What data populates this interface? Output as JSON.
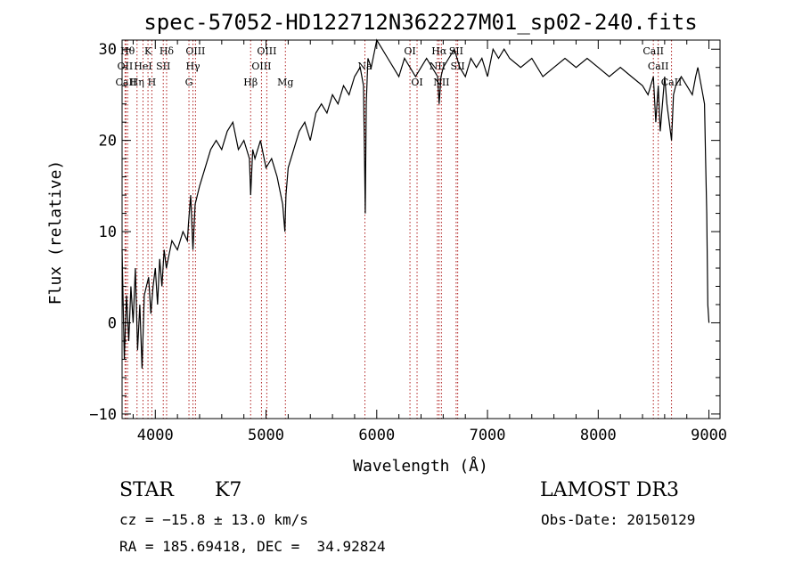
{
  "chart_data": {
    "type": "line",
    "title": "spec-57052-HD122712N362227M01_sp02-240.fits",
    "xlabel": "Wavelength (Å)",
    "ylabel": "Flux (relative)",
    "xlim": [
      3700,
      9100
    ],
    "ylim": [
      -10.5,
      31
    ],
    "xticks": [
      4000,
      5000,
      6000,
      7000,
      8000,
      9000
    ],
    "yticks": [
      -10,
      0,
      10,
      20,
      30
    ],
    "x_minor_step": 200,
    "y_minor_step": 2,
    "series": [
      {
        "name": "flux",
        "x": [
          3700,
          3720,
          3740,
          3760,
          3780,
          3800,
          3820,
          3840,
          3860,
          3880,
          3900,
          3920,
          3940,
          3960,
          3980,
          4000,
          4020,
          4040,
          4060,
          4080,
          4100,
          4150,
          4200,
          4250,
          4290,
          4300,
          4320,
          4340,
          4360,
          4400,
          4450,
          4500,
          4550,
          4600,
          4650,
          4700,
          4750,
          4800,
          4850,
          4861,
          4880,
          4900,
          4950,
          5000,
          5050,
          5100,
          5150,
          5170,
          5180,
          5200,
          5250,
          5300,
          5350,
          5400,
          5450,
          5500,
          5550,
          5600,
          5650,
          5700,
          5750,
          5800,
          5850,
          5880,
          5890,
          5896,
          5905,
          5920,
          5950,
          6000,
          6050,
          6100,
          6150,
          6200,
          6250,
          6300,
          6350,
          6400,
          6450,
          6500,
          6550,
          6563,
          6580,
          6600,
          6650,
          6700,
          6750,
          6800,
          6850,
          6900,
          6950,
          7000,
          7050,
          7100,
          7150,
          7200,
          7300,
          7400,
          7500,
          7600,
          7700,
          7800,
          7900,
          8000,
          8100,
          8200,
          8300,
          8400,
          8450,
          8498,
          8520,
          8542,
          8560,
          8600,
          8620,
          8662,
          8680,
          8700,
          8750,
          8800,
          8850,
          8880,
          8900,
          8930,
          8960,
          8970,
          8980,
          8990,
          9000
        ],
        "y": [
          8,
          -4,
          3,
          -2,
          4,
          0,
          6,
          -3,
          2,
          -5,
          3,
          4,
          5,
          1,
          4,
          6,
          2,
          7,
          4,
          8,
          6,
          9,
          8,
          10,
          9,
          11,
          14,
          8,
          13,
          15,
          17,
          19,
          20,
          19,
          21,
          22,
          19,
          20,
          18,
          14,
          19,
          18,
          20,
          17,
          18,
          16,
          13,
          10,
          14,
          17,
          19,
          21,
          22,
          20,
          23,
          24,
          23,
          25,
          24,
          26,
          25,
          27,
          28,
          26,
          18,
          12,
          24,
          29,
          28,
          31,
          30,
          29,
          28,
          27,
          29,
          28,
          27,
          28,
          29,
          28,
          27,
          24,
          27,
          28,
          29,
          30,
          28,
          27,
          29,
          28,
          29,
          27,
          30,
          29,
          30,
          29,
          28,
          29,
          27,
          28,
          29,
          28,
          29,
          28,
          27,
          28,
          27,
          26,
          25,
          27,
          22,
          26,
          21,
          27,
          24,
          20,
          25,
          26,
          27,
          26,
          25,
          27,
          28,
          26,
          24,
          18,
          12,
          2,
          0
        ]
      }
    ],
    "lines": [
      {
        "name": "OII",
        "wavelength": 3727,
        "row": 2
      },
      {
        "name": "CaII",
        "wavelength": 3735,
        "row": 3
      },
      {
        "name": "Hθ",
        "wavelength": 3750,
        "row": 1
      },
      {
        "name": "Hη",
        "wavelength": 3835,
        "row": 3
      },
      {
        "name": "HeI",
        "wavelength": 3889,
        "row": 2
      },
      {
        "name": "K",
        "wavelength": 3934,
        "row": 1
      },
      {
        "name": "H",
        "wavelength": 3969,
        "row": 3
      },
      {
        "name": "SII",
        "wavelength": 4072,
        "row": 2
      },
      {
        "name": "Hδ",
        "wavelength": 4102,
        "row": 1
      },
      {
        "name": "G",
        "wavelength": 4304,
        "row": 3
      },
      {
        "name": "Hγ",
        "wavelength": 4340,
        "row": 2
      },
      {
        "name": "OIII",
        "wavelength": 4363,
        "row": 1
      },
      {
        "name": "Hβ",
        "wavelength": 4861,
        "row": 3
      },
      {
        "name": "OIII",
        "wavelength": 4959,
        "row": 2
      },
      {
        "name": "OIII",
        "wavelength": 5007,
        "row": 1
      },
      {
        "name": "Mg",
        "wavelength": 5175,
        "row": 3
      },
      {
        "name": "Na",
        "wavelength": 5893,
        "row": 2
      },
      {
        "name": "OI",
        "wavelength": 6300,
        "row": 1
      },
      {
        "name": "OI",
        "wavelength": 6364,
        "row": 3
      },
      {
        "name": "NII",
        "wavelength": 6548,
        "row": 2
      },
      {
        "name": "Hα",
        "wavelength": 6563,
        "row": 1
      },
      {
        "name": "NII",
        "wavelength": 6584,
        "row": 3
      },
      {
        "name": "SII",
        "wavelength": 6717,
        "row": 1
      },
      {
        "name": "SII",
        "wavelength": 6731,
        "row": 2
      },
      {
        "name": "CaII",
        "wavelength": 8498,
        "row": 1
      },
      {
        "name": "CaII",
        "wavelength": 8542,
        "row": 2
      },
      {
        "name": "CaII",
        "wavelength": 8662,
        "row": 3
      }
    ]
  },
  "info": {
    "class": "STAR",
    "subclass": "K7",
    "survey": "LAMOST DR3",
    "cz": "cz = −15.8 ± 13.0 km/s",
    "obs_date": "Obs-Date: 20150129",
    "radec": "RA = 185.69418, DEC =  34.92824"
  },
  "colors": {
    "line_marker": "#b02020",
    "spectrum": "#000000",
    "axis": "#000000"
  }
}
